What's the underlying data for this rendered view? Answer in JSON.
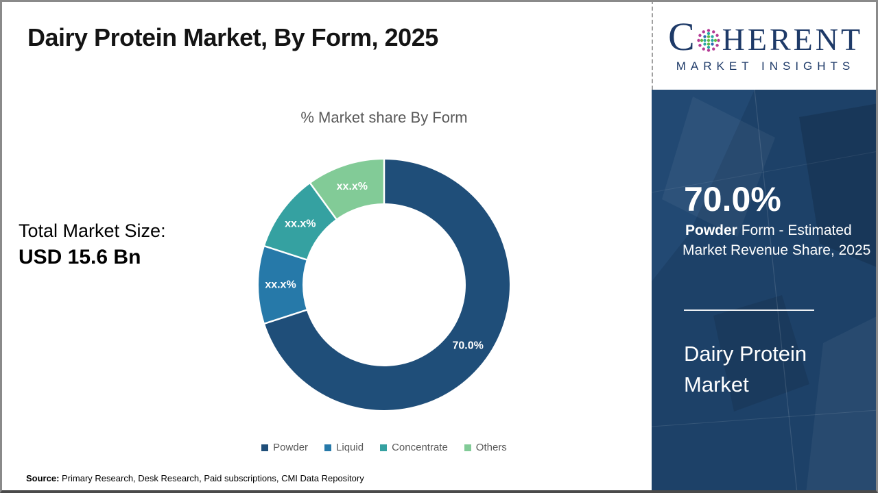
{
  "header": {
    "title": "Dairy Protein Market, By Form, 2025"
  },
  "logo": {
    "c": "C",
    "rest": "HERENT",
    "subtitle": "MARKET INSIGHTS",
    "brand_color": "#1e3a68"
  },
  "left_panel": {
    "market_size_label": "Total Market Size:",
    "market_size_value": "USD 15.6 Bn"
  },
  "chart_data": {
    "type": "pie",
    "donut": true,
    "title": "% Market share By Form",
    "categories": [
      "Powder",
      "Liquid",
      "Concentrate",
      "Others"
    ],
    "values": [
      70,
      10,
      10,
      10
    ],
    "slice_labels": [
      "70.0%",
      "xx.x%",
      "xx.x%",
      "xx.x%"
    ],
    "colors": [
      "#1F4E79",
      "#2679A9",
      "#35A1A1",
      "#82CB97"
    ],
    "start_angle_deg": 0,
    "direction": "clockwise",
    "legend_position": "bottom",
    "label_color": "#ffffff"
  },
  "sidebar": {
    "background_color": "#1d4168",
    "stat_value": "70.0%",
    "stat_desc_bold": "Powder",
    "stat_desc_rest": " Form - Estimated Market Revenue Share, 2025",
    "market_name": "Dairy Protein Market"
  },
  "footer": {
    "source_label": "Source:",
    "source_text": " Primary Research, Desk Research, Paid subscriptions, CMI Data Repository"
  }
}
